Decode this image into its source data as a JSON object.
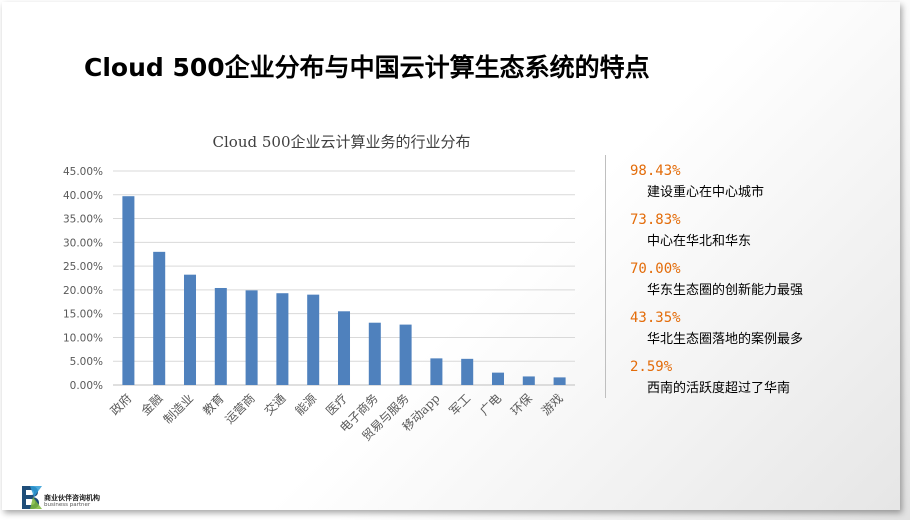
{
  "page": {
    "title": "Cloud 500企业分布与中国云计算生态系统的特点"
  },
  "stats": [
    {
      "value": "98.43%",
      "desc": "建设重心在中心城市"
    },
    {
      "value": "73.83%",
      "desc": "中心在华北和华东"
    },
    {
      "value": "70.00%",
      "desc": "华东生态圈的创新能力最强"
    },
    {
      "value": "43.35%",
      "desc": "华北生态圈落地的案例最多"
    },
    {
      "value": "2.59%",
      "desc": "西南的活跃度超过了华南"
    }
  ],
  "logo": {
    "name": "商业伙伴咨询机构",
    "sub": "business partner"
  },
  "chart_data": {
    "type": "bar",
    "title": "Cloud 500企业云计算业务的行业分布",
    "xlabel": "",
    "ylabel": "",
    "categories": [
      "政府",
      "金融",
      "制造业",
      "教育",
      "运营商",
      "交通",
      "能源",
      "医疗",
      "电子商务",
      "贸易与服务",
      "移动app",
      "军工",
      "广电",
      "环保",
      "游戏"
    ],
    "values": [
      39.7,
      28.0,
      23.2,
      20.4,
      19.9,
      19.3,
      19.0,
      15.5,
      13.1,
      12.7,
      5.6,
      5.5,
      2.6,
      1.8,
      1.6
    ],
    "ylim": [
      0,
      45
    ],
    "yticks": [
      "0.00%",
      "5.00%",
      "10.00%",
      "15.00%",
      "20.00%",
      "25.00%",
      "30.00%",
      "35.00%",
      "40.00%",
      "45.00%"
    ],
    "grid": true,
    "bar_color": "#4f81bd"
  }
}
